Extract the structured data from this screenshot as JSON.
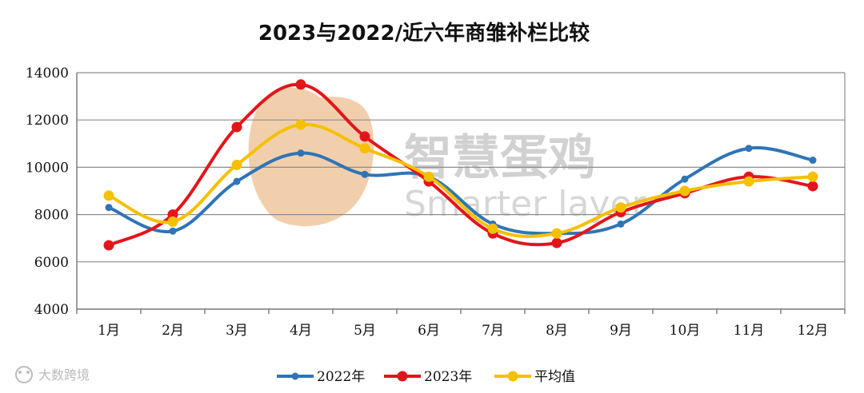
{
  "chart_data": {
    "type": "line",
    "title": "2023与2022/近六年商雏补栏比较",
    "categories": [
      "1月",
      "2月",
      "3月",
      "4月",
      "5月",
      "6月",
      "7月",
      "8月",
      "9月",
      "10月",
      "11月",
      "12月"
    ],
    "ylim": [
      4000,
      14000
    ],
    "yticks": [
      4000,
      6000,
      8000,
      10000,
      12000,
      14000
    ],
    "grid": true,
    "legend_position": "bottom",
    "series": [
      {
        "name": "2022年",
        "color": "#2e75b6",
        "values": [
          8300,
          7300,
          9400,
          10600,
          9700,
          9600,
          7600,
          7200,
          7600,
          9500,
          10800,
          10300
        ]
      },
      {
        "name": "2023年",
        "color": "#e3151b",
        "values": [
          6700,
          8000,
          11700,
          13500,
          11300,
          9400,
          7200,
          6800,
          8100,
          8900,
          9600,
          9200
        ]
      },
      {
        "name": "平均值",
        "color": "#f5c000",
        "values": [
          8800,
          7700,
          10100,
          11800,
          10800,
          9600,
          7400,
          7200,
          8300,
          9000,
          9400,
          9600
        ]
      }
    ]
  },
  "watermark": {
    "text_cn": "智慧蛋鸡",
    "text_en": "Smarter layer",
    "logo_color": "#e8a868"
  },
  "credit": "大数跨境"
}
